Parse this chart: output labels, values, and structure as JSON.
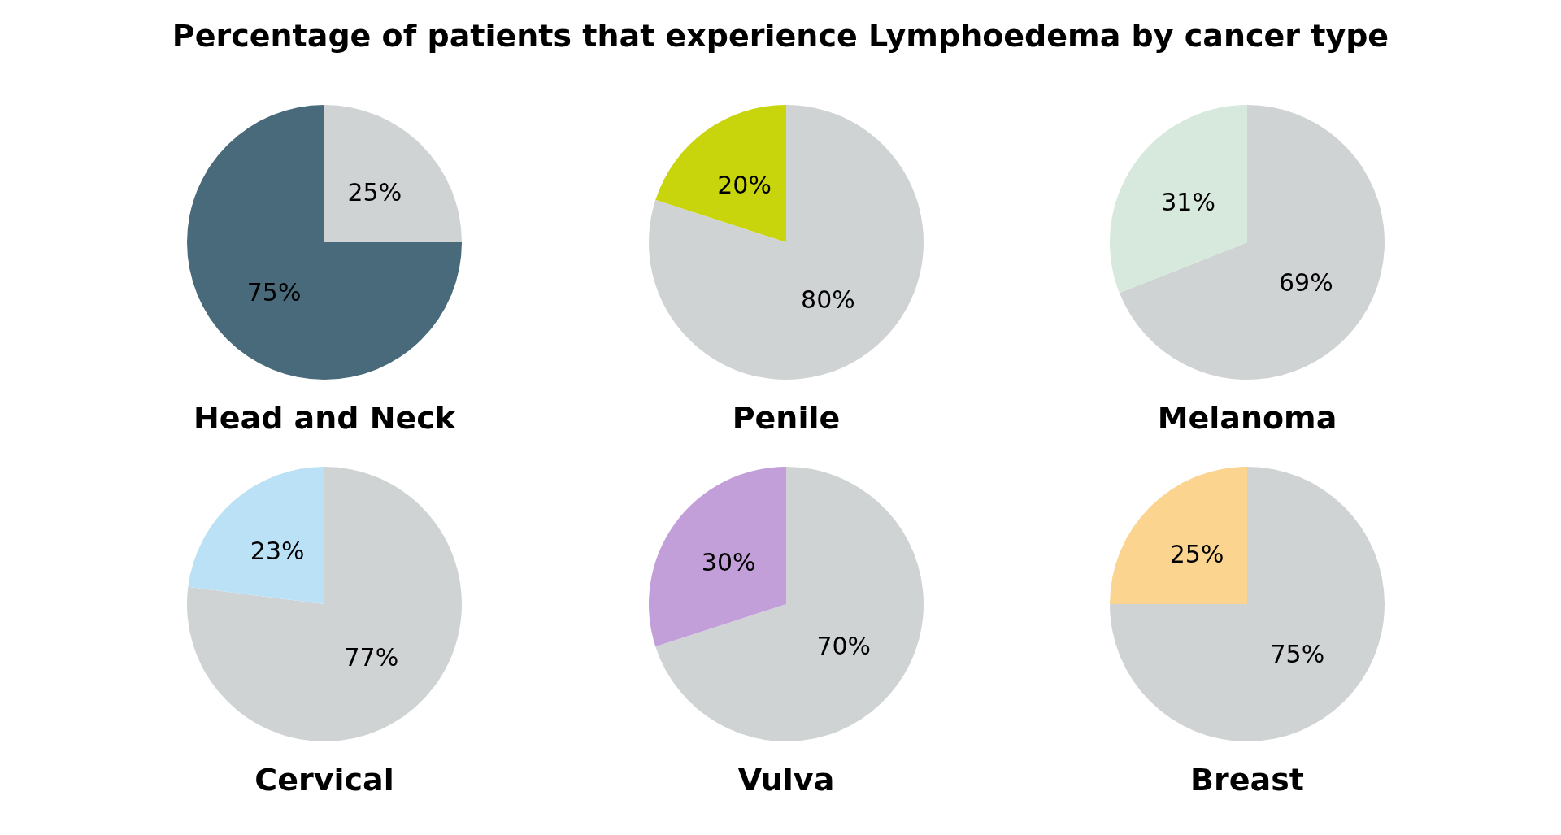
{
  "chart_data": [
    {
      "type": "pie",
      "title": "Percentage of patients that experience Lymphoedema by cancer type",
      "xlabel": "Head and Neck",
      "categories": [
        null,
        null
      ],
      "values": [
        25,
        75
      ],
      "colors": [
        "#d0d3d4",
        "#486a7a"
      ],
      "value_labels": [
        "25%",
        "75%"
      ]
    },
    {
      "type": "pie",
      "xlabel": "Penile",
      "categories": [
        null,
        null
      ],
      "values": [
        80,
        20
      ],
      "colors": [
        "#d0d3d4",
        "#c8d40c"
      ],
      "value_labels": [
        "80%",
        "20%"
      ]
    },
    {
      "type": "pie",
      "xlabel": "Melanoma",
      "categories": [
        null,
        null
      ],
      "values": [
        69,
        31
      ],
      "colors": [
        "#d0d3d4",
        "#d6e9dc"
      ],
      "value_labels": [
        "69%",
        "31%"
      ]
    },
    {
      "type": "pie",
      "xlabel": "Cervical",
      "categories": [
        null,
        null
      ],
      "values": [
        77,
        23
      ],
      "colors": [
        "#d0d3d4",
        "#bbe1f6"
      ],
      "value_labels": [
        "77%",
        "23%"
      ]
    },
    {
      "type": "pie",
      "xlabel": "Vulva",
      "categories": [
        null,
        null
      ],
      "values": [
        70,
        30
      ],
      "colors": [
        "#d0d3d4",
        "#c29fd8"
      ],
      "value_labels": [
        "70%",
        "30%"
      ]
    },
    {
      "type": "pie",
      "xlabel": "Breast",
      "categories": [
        null,
        null
      ],
      "values": [
        75,
        25
      ],
      "colors": [
        "#d0d3d4",
        "#fbd48f"
      ],
      "value_labels": [
        "75%",
        "25%"
      ]
    }
  ]
}
